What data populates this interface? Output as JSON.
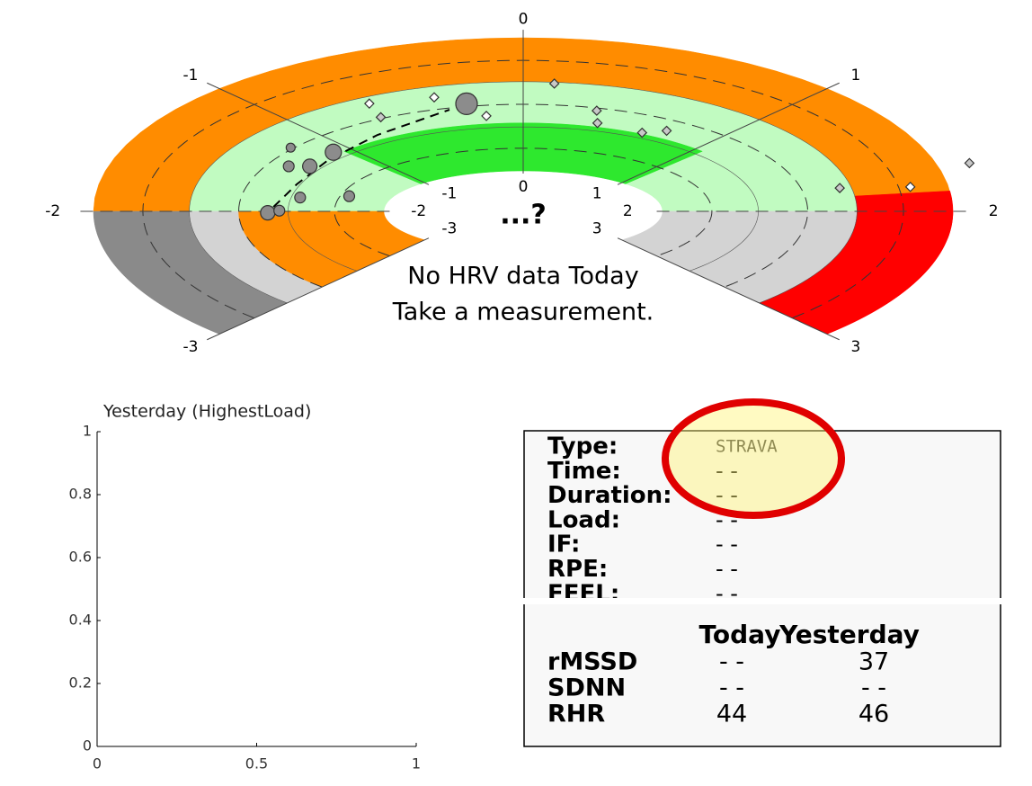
{
  "gauge": {
    "outer_ticks": [
      -3,
      -2,
      -1,
      0,
      1,
      2,
      3
    ],
    "inner_ticks": [
      -3,
      -2,
      -1,
      0,
      1,
      2,
      3
    ],
    "center_text": "...?",
    "message": [
      "No HRV data Today",
      "Take a measurement."
    ],
    "points": [
      {
        "a": -0.25,
        "r": 0.52,
        "size": 12,
        "shape": "circle",
        "color": "#8c8c8c"
      },
      {
        "a": -1.1,
        "r": 0.38,
        "size": 9,
        "shape": "circle",
        "color": "#8c8c8c"
      },
      {
        "a": -1.33,
        "r": 0.37,
        "size": 8,
        "shape": "circle",
        "color": "#8c8c8c"
      },
      {
        "a": -1.39,
        "r": 0.43,
        "size": 6,
        "shape": "circle",
        "color": "#8c8c8c"
      },
      {
        "a": -2.02,
        "r": 0.4,
        "size": 8,
        "shape": "circle",
        "color": "#8c8c8c"
      },
      {
        "a": -1.99,
        "r": 0.36,
        "size": 6,
        "shape": "circle",
        "color": "#8c8c8c"
      },
      {
        "a": -1.78,
        "r": 0.3,
        "size": 6,
        "shape": "circle",
        "color": "#8c8c8c"
      },
      {
        "a": -1.67,
        "r": 0.14,
        "size": 6,
        "shape": "circle",
        "color": "#8c8c8c"
      },
      {
        "a": -1.2,
        "r": 0.51,
        "size": 5,
        "shape": "circle",
        "color": "#8c8c8c"
      },
      {
        "a": -0.37,
        "r": 0.59,
        "size": 5,
        "shape": "diamond",
        "color": "#ffffff"
      },
      {
        "a": 0.12,
        "r": 0.66,
        "size": 5,
        "shape": "diamond",
        "color": "#c8c8c8"
      },
      {
        "a": -0.18,
        "r": 0.42,
        "size": 5,
        "shape": "diamond",
        "color": "#ffffff"
      },
      {
        "a": 0.34,
        "r": 0.48,
        "size": 5,
        "shape": "diamond",
        "color": "#c8c8c8"
      },
      {
        "a": 0.38,
        "r": 0.39,
        "size": 5,
        "shape": "diamond",
        "color": "#c8c8c8"
      },
      {
        "a": 0.64,
        "r": 0.37,
        "size": 5,
        "shape": "diamond",
        "color": "#c8c8c8"
      },
      {
        "a": 0.74,
        "r": 0.42,
        "size": 5,
        "shape": "diamond",
        "color": "#c8c8c8"
      },
      {
        "a": -0.64,
        "r": 0.62,
        "size": 5,
        "shape": "diamond",
        "color": "#ffffff"
      },
      {
        "a": -0.66,
        "r": 0.51,
        "size": 5,
        "shape": "diamond",
        "color": "#c8c8c8"
      },
      {
        "a": 1.67,
        "r": 1.11,
        "size": 5,
        "shape": "diamond",
        "color": "#c8c8c8"
      },
      {
        "a": 1.76,
        "r": 0.63,
        "size": 5,
        "shape": "diamond",
        "color": "#c8c8c8"
      },
      {
        "a": 1.8,
        "r": 0.87,
        "size": 5,
        "shape": "diamond",
        "color": "#ffffff"
      }
    ]
  },
  "chart_data": {
    "type": "line",
    "title": "Yesterday (HighestLoad)",
    "xlim": [
      0,
      1
    ],
    "ylim": [
      0,
      1
    ],
    "xticks": [
      0,
      0.5,
      1
    ],
    "yticks": [
      0,
      0.2,
      0.4,
      0.6,
      0.8,
      1
    ]
  },
  "panel": {
    "fields": [
      {
        "label": "Type:",
        "value": "STRAVA"
      },
      {
        "label": "Time:",
        "value": "- -"
      },
      {
        "label": "Duration:",
        "value": "- -"
      },
      {
        "label": "Load:",
        "value": "- -"
      },
      {
        "label": "IF:",
        "value": "- -"
      },
      {
        "label": "RPE:",
        "value": "- -"
      },
      {
        "label": "FEEL:",
        "value": "- -"
      }
    ],
    "table": {
      "headers": [
        "Today",
        "Yesterday"
      ],
      "rows": [
        {
          "label": "rMSSD",
          "values": [
            "- -",
            37
          ]
        },
        {
          "label": "SDNN",
          "values": [
            "- -",
            "- -"
          ]
        },
        {
          "label": "RHR",
          "values": [
            44,
            46
          ]
        }
      ]
    }
  }
}
